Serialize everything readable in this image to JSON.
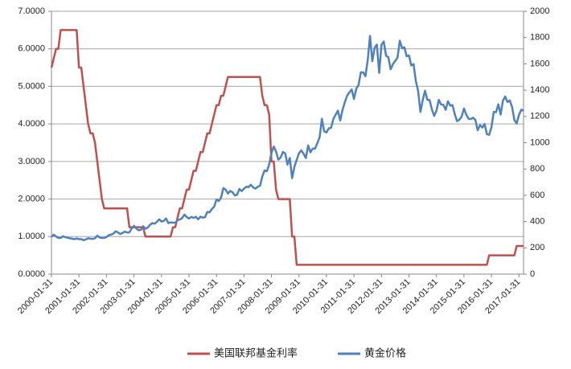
{
  "chart_data": {
    "type": "line",
    "categories": [
      "2000-01-31",
      null,
      null,
      null,
      null,
      null,
      null,
      null,
      null,
      null,
      null,
      null,
      "2001-01-31",
      null,
      null,
      null,
      null,
      null,
      null,
      null,
      null,
      null,
      null,
      null,
      "2002-01-31",
      null,
      null,
      null,
      null,
      null,
      null,
      null,
      null,
      null,
      null,
      null,
      "2003-01-31",
      null,
      null,
      null,
      null,
      null,
      null,
      null,
      null,
      null,
      null,
      null,
      "2004-01-31",
      null,
      null,
      null,
      null,
      null,
      null,
      null,
      null,
      null,
      null,
      null,
      "2005-01-31",
      null,
      null,
      null,
      null,
      null,
      null,
      null,
      null,
      null,
      null,
      null,
      "2006-01-31",
      null,
      null,
      null,
      null,
      null,
      null,
      null,
      null,
      null,
      null,
      null,
      "2007-01-31",
      null,
      null,
      null,
      null,
      null,
      null,
      null,
      null,
      null,
      null,
      null,
      "2008-01-31",
      null,
      null,
      null,
      null,
      null,
      null,
      null,
      null,
      null,
      null,
      null,
      "2009-01-31",
      null,
      null,
      null,
      null,
      null,
      null,
      null,
      null,
      null,
      null,
      null,
      "2010-01-31",
      null,
      null,
      null,
      null,
      null,
      null,
      null,
      null,
      null,
      null,
      null,
      "2011-01-31",
      null,
      null,
      null,
      null,
      null,
      null,
      null,
      null,
      null,
      null,
      null,
      "2012-01-31",
      null,
      null,
      null,
      null,
      null,
      null,
      null,
      null,
      null,
      null,
      null,
      "2013-01-31",
      null,
      null,
      null,
      null,
      null,
      null,
      null,
      null,
      null,
      null,
      null,
      "2014-01-31",
      null,
      null,
      null,
      null,
      null,
      null,
      null,
      null,
      null,
      null,
      null,
      "2015-01-31",
      null,
      null,
      null,
      null,
      null,
      null,
      null,
      null,
      null,
      null,
      null,
      "2016-01-31",
      null,
      null,
      null,
      null,
      null,
      null,
      null,
      null,
      null,
      null,
      null,
      "2017-01-31",
      null,
      null
    ],
    "series": [
      {
        "name": "美国联邦基金利率",
        "color": "#c0504d",
        "axis": "y",
        "values": [
          5.5,
          5.75,
          6.0,
          6.0,
          6.5,
          6.5,
          6.5,
          6.5,
          6.5,
          6.5,
          6.5,
          6.5,
          5.5,
          5.5,
          5.0,
          4.5,
          4.0,
          3.75,
          3.75,
          3.5,
          3.0,
          2.5,
          2.0,
          1.75,
          1.75,
          1.75,
          1.75,
          1.75,
          1.75,
          1.75,
          1.75,
          1.75,
          1.75,
          1.75,
          1.25,
          1.25,
          1.25,
          1.25,
          1.25,
          1.25,
          1.25,
          1.0,
          1.0,
          1.0,
          1.0,
          1.0,
          1.0,
          1.0,
          1.0,
          1.0,
          1.0,
          1.0,
          1.0,
          1.25,
          1.25,
          1.5,
          1.75,
          1.75,
          2.0,
          2.25,
          2.25,
          2.5,
          2.75,
          2.75,
          3.0,
          3.25,
          3.25,
          3.5,
          3.75,
          3.75,
          4.0,
          4.25,
          4.5,
          4.5,
          4.75,
          4.75,
          5.0,
          5.25,
          5.25,
          5.25,
          5.25,
          5.25,
          5.25,
          5.25,
          5.25,
          5.25,
          5.25,
          5.25,
          5.25,
          5.25,
          5.25,
          5.25,
          4.75,
          4.5,
          4.5,
          4.25,
          3.0,
          3.0,
          2.25,
          2.0,
          2.0,
          2.0,
          2.0,
          2.0,
          2.0,
          1.0,
          1.0,
          0.25,
          0.25,
          0.25,
          0.25,
          0.25,
          0.25,
          0.25,
          0.25,
          0.25,
          0.25,
          0.25,
          0.25,
          0.25,
          0.25,
          0.25,
          0.25,
          0.25,
          0.25,
          0.25,
          0.25,
          0.25,
          0.25,
          0.25,
          0.25,
          0.25,
          0.25,
          0.25,
          0.25,
          0.25,
          0.25,
          0.25,
          0.25,
          0.25,
          0.25,
          0.25,
          0.25,
          0.25,
          0.25,
          0.25,
          0.25,
          0.25,
          0.25,
          0.25,
          0.25,
          0.25,
          0.25,
          0.25,
          0.25,
          0.25,
          0.25,
          0.25,
          0.25,
          0.25,
          0.25,
          0.25,
          0.25,
          0.25,
          0.25,
          0.25,
          0.25,
          0.25,
          0.25,
          0.25,
          0.25,
          0.25,
          0.25,
          0.25,
          0.25,
          0.25,
          0.25,
          0.25,
          0.25,
          0.25,
          0.25,
          0.25,
          0.25,
          0.25,
          0.25,
          0.25,
          0.25,
          0.25,
          0.25,
          0.25,
          0.25,
          0.5,
          0.5,
          0.5,
          0.5,
          0.5,
          0.5,
          0.5,
          0.5,
          0.5,
          0.5,
          0.5,
          0.5,
          0.75,
          0.75,
          0.75,
          0.75
        ]
      },
      {
        "name": "黄金价格",
        "color": "#4f81bd",
        "axis": "y2",
        "values": [
          284,
          300,
          286,
          276,
          275,
          288,
          282,
          277,
          273,
          270,
          266,
          272,
          266,
          267,
          258,
          264,
          273,
          270,
          268,
          273,
          293,
          279,
          275,
          276,
          282,
          296,
          301,
          308,
          326,
          318,
          305,
          313,
          324,
          317,
          318,
          347,
          368,
          348,
          334,
          336,
          364,
          346,
          354,
          375,
          388,
          384,
          398,
          417,
          400,
          405,
          424,
          388,
          394,
          392,
          391,
          409,
          416,
          426,
          453,
          435,
          423,
          435,
          428,
          436,
          417,
          437,
          430,
          433,
          473,
          470,
          496,
          513,
          568,
          556,
          582,
          654,
          643,
          613,
          633,
          623,
          599,
          604,
          648,
          632,
          650,
          665,
          662,
          680,
          660,
          650,
          665,
          672,
          743,
          789,
          783,
          834,
          923,
          971,
          933,
          871,
          887,
          930,
          918,
          833,
          884,
          730,
          816,
          869,
          919,
          942,
          916,
          883,
          979,
          927,
          955,
          955,
          996,
          1040,
          1182,
          1087,
          1078,
          1109,
          1113,
          1180,
          1213,
          1244,
          1169,
          1248,
          1307,
          1357,
          1383,
          1405,
          1333,
          1411,
          1439,
          1535,
          1536,
          1505,
          1628,
          1813,
          1620,
          1722,
          1746,
          1531,
          1744,
          1770,
          1662,
          1651,
          1558,
          1598,
          1622,
          1648,
          1776,
          1719,
          1726,
          1657,
          1664,
          1588,
          1598,
          1469,
          1394,
          1234,
          1323,
          1396,
          1327,
          1324,
          1253,
          1204,
          1244,
          1326,
          1291,
          1288,
          1250,
          1315,
          1282,
          1286,
          1216,
          1164,
          1175,
          1199,
          1260,
          1213,
          1183,
          1180,
          1190,
          1172,
          1095,
          1134,
          1115,
          1142,
          1065,
          1060,
          1118,
          1234,
          1232,
          1292,
          1214,
          1320,
          1351,
          1309,
          1322,
          1272,
          1173,
          1146,
          1211,
          1251,
          1245
        ]
      }
    ],
    "ylim": [
      0,
      7
    ],
    "yticks": [
      {
        "value": 0,
        "label": "0.0000"
      },
      {
        "value": 1,
        "label": "1.0000"
      },
      {
        "value": 2,
        "label": "2.0000"
      },
      {
        "value": 3,
        "label": "3.0000"
      },
      {
        "value": 4,
        "label": "4.0000"
      },
      {
        "value": 5,
        "label": "5.0000"
      },
      {
        "value": 6,
        "label": "6.0000"
      },
      {
        "value": 7,
        "label": "7.0000"
      }
    ],
    "y2lim": [
      0,
      2000
    ],
    "y2ticks": [
      0,
      200,
      400,
      600,
      800,
      1000,
      1200,
      1400,
      1600,
      1800,
      2000
    ],
    "grid": true,
    "legend": "bottom"
  }
}
